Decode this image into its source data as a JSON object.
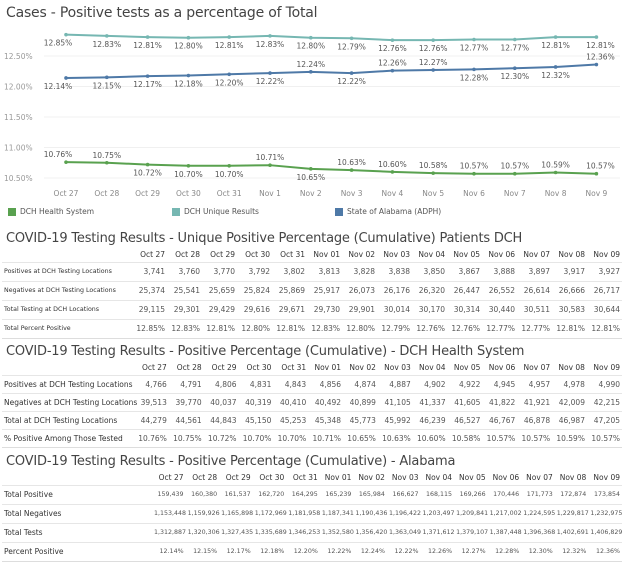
{
  "chart_data": {
    "type": "line",
    "title": "Cases - Positive tests as a percentage of Total",
    "categories": [
      "Oct 27",
      "Oct 28",
      "Oct 29",
      "Oct 30",
      "Oct 31",
      "Nov 1",
      "Nov 2",
      "Nov 3",
      "Nov 4",
      "Nov 5",
      "Nov 6",
      "Nov 7",
      "Nov 8",
      "Nov 9"
    ],
    "yticks": [
      "12.50%",
      "12.00%",
      "11.50%",
      "11.00%",
      "10.50%"
    ],
    "ytick_values": [
      12.5,
      12.0,
      11.5,
      11.0,
      10.5
    ],
    "ylim": [
      10.45,
      12.92
    ],
    "grid": true,
    "legend_position": "bottom",
    "series": [
      {
        "name": "DCH Health System",
        "color": "#59a14f",
        "values": [
          10.76,
          10.75,
          10.72,
          10.7,
          10.7,
          10.71,
          10.65,
          10.63,
          10.6,
          10.58,
          10.57,
          10.57,
          10.59,
          10.57
        ],
        "labels": [
          "10.76%",
          "10.75%",
          "10.72%",
          "10.70%",
          "10.70%",
          "10.71%",
          "10.65%",
          "10.63%",
          "10.60%",
          "10.58%",
          "10.57%",
          "10.57%",
          "10.59%",
          "10.57%"
        ]
      },
      {
        "name": "DCH Unique Results",
        "color": "#76b7b2",
        "values": [
          12.85,
          12.83,
          12.81,
          12.8,
          12.81,
          12.83,
          12.8,
          12.79,
          12.76,
          12.76,
          12.77,
          12.77,
          12.81,
          12.81
        ],
        "labels": [
          "12.85%",
          "12.83%",
          "12.81%",
          "12.80%",
          "12.81%",
          "12.83%",
          "12.80%",
          "12.79%",
          "12.76%",
          "12.76%",
          "12.77%",
          "12.77%",
          "12.81%",
          "12.81%"
        ]
      },
      {
        "name": "State of Alabama (ADPH)",
        "color": "#4e79a7",
        "values": [
          12.14,
          12.15,
          12.17,
          12.18,
          12.2,
          12.22,
          12.24,
          12.22,
          12.26,
          12.27,
          12.28,
          12.3,
          12.32,
          12.36
        ],
        "labels": [
          "12.14%",
          "12.15%",
          "12.17%",
          "12.18%",
          "12.20%",
          "12.22%",
          "12.24%",
          "12.22%",
          "12.26%",
          "12.27%",
          "12.28%",
          "12.30%",
          "12.32%",
          "12.36%"
        ]
      }
    ]
  },
  "tables": [
    {
      "title": "COVID-19 Testing Results - Unique Positive Percentage (Cumulative) Patients DCH",
      "headers": [
        "Oct 27",
        "Oct 28",
        "Oct 29",
        "Oct 30",
        "Oct 31",
        "Nov 01",
        "Nov 02",
        "Nov 03",
        "Nov 04",
        "Nov 05",
        "Nov 06",
        "Nov 07",
        "Nov 08",
        "Nov 09"
      ],
      "rows": [
        {
          "label": "Positives at DCH Testing Locations",
          "values": [
            "3,741",
            "3,760",
            "3,770",
            "3,792",
            "3,802",
            "3,813",
            "3,828",
            "3,838",
            "3,850",
            "3,867",
            "3,888",
            "3,897",
            "3,917",
            "3,927"
          ]
        },
        {
          "label": "Negatives at DCH Testing Locations",
          "values": [
            "25,374",
            "25,541",
            "25,659",
            "25,824",
            "25,869",
            "25,917",
            "26,073",
            "26,176",
            "26,320",
            "26,447",
            "26,552",
            "26,614",
            "26,666",
            "26,717"
          ]
        },
        {
          "label": "Total Testing at DCH Locations",
          "values": [
            "29,115",
            "29,301",
            "29,429",
            "29,616",
            "29,671",
            "29,730",
            "29,901",
            "30,014",
            "30,170",
            "30,314",
            "30,440",
            "30,511",
            "30,583",
            "30,644"
          ]
        },
        {
          "label": "Total Percent Positive",
          "values": [
            "12.85%",
            "12.83%",
            "12.81%",
            "12.80%",
            "12.81%",
            "12.83%",
            "12.80%",
            "12.79%",
            "12.76%",
            "12.76%",
            "12.77%",
            "12.77%",
            "12.81%",
            "12.81%"
          ]
        }
      ]
    },
    {
      "title": "COVID-19 Testing Results - Positive Percentage (Cumulative) - DCH Health System",
      "headers": [
        "Oct 27",
        "Oct 28",
        "Oct 29",
        "Oct 30",
        "Oct 31",
        "Nov 01",
        "Nov 02",
        "Nov 03",
        "Nov 04",
        "Nov 05",
        "Nov 06",
        "Nov 07",
        "Nov 08",
        "Nov 09"
      ],
      "rows": [
        {
          "label": "Positives at DCH Testing Locations",
          "values": [
            "4,766",
            "4,791",
            "4,806",
            "4,831",
            "4,843",
            "4,856",
            "4,874",
            "4,887",
            "4,902",
            "4,922",
            "4,945",
            "4,957",
            "4,978",
            "4,990"
          ]
        },
        {
          "label": "Negatives at DCH Testing Locations",
          "values": [
            "39,513",
            "39,770",
            "40,037",
            "40,319",
            "40,410",
            "40,492",
            "40,899",
            "41,105",
            "41,337",
            "41,605",
            "41,822",
            "41,921",
            "42,009",
            "42,215"
          ]
        },
        {
          "label": "Total at DCH Testing Locations",
          "values": [
            "44,279",
            "44,561",
            "44,843",
            "45,150",
            "45,253",
            "45,348",
            "45,773",
            "45,992",
            "46,239",
            "46,527",
            "46,767",
            "46,878",
            "46,987",
            "47,205"
          ]
        },
        {
          "label": "% Positive Among Those Tested",
          "values": [
            "10.76%",
            "10.75%",
            "10.72%",
            "10.70%",
            "10.70%",
            "10.71%",
            "10.65%",
            "10.63%",
            "10.60%",
            "10.58%",
            "10.57%",
            "10.57%",
            "10.59%",
            "10.57%"
          ]
        }
      ]
    },
    {
      "title": "COVID-19 Testing Results - Positive Percentage (Cumulative) - Alabama",
      "headers": [
        "Oct 27",
        "Oct 28",
        "Oct 29",
        "Oct 30",
        "Oct 31",
        "Nov 01",
        "Nov 02",
        "Nov 03",
        "Nov 04",
        "Nov 05",
        "Nov 06",
        "Nov 07",
        "Nov 08",
        "Nov 09"
      ],
      "rows": [
        {
          "label": "Total Positive",
          "values": [
            "159,439",
            "160,380",
            "161,537",
            "162,720",
            "164,295",
            "165,239",
            "165,984",
            "166,627",
            "168,115",
            "169,266",
            "170,446",
            "171,773",
            "172,874",
            "173,854"
          ]
        },
        {
          "label": "Total Negatives",
          "values": [
            "1,153,448",
            "1,159,926",
            "1,165,898",
            "1,172,969",
            "1,181,958",
            "1,187,341",
            "1,190,436",
            "1,196,422",
            "1,203,497",
            "1,209,841",
            "1,217,002",
            "1,224,595",
            "1,229,817",
            "1,232,975"
          ]
        },
        {
          "label": "Total Tests",
          "values": [
            "1,312,887",
            "1,320,306",
            "1,327,435",
            "1,335,689",
            "1,346,253",
            "1,352,580",
            "1,356,420",
            "1,363,049",
            "1,371,612",
            "1,379,107",
            "1,387,448",
            "1,396,368",
            "1,402,691",
            "1,406,829"
          ]
        },
        {
          "label": "Percent Positive",
          "values": [
            "12.14%",
            "12.15%",
            "12.17%",
            "12.18%",
            "12.20%",
            "12.22%",
            "12.24%",
            "12.22%",
            "12.26%",
            "12.27%",
            "12.28%",
            "12.30%",
            "12.32%",
            "12.36%"
          ]
        }
      ]
    }
  ]
}
